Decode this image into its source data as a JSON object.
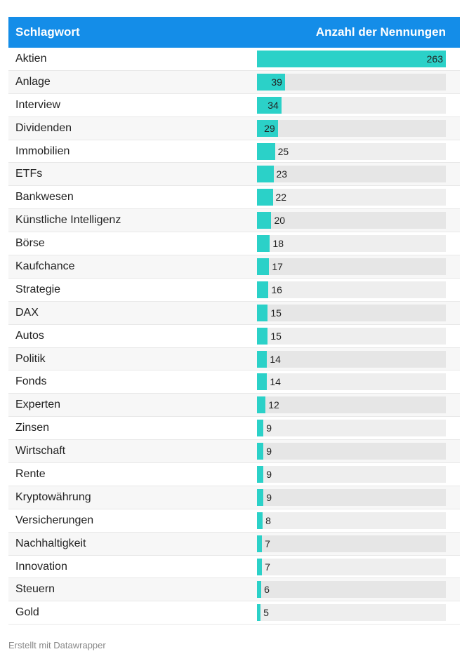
{
  "chart_data": {
    "type": "bar",
    "columns": [
      "Schlagwort",
      "Anzahl der Nennungen"
    ],
    "categories": [
      "Aktien",
      "Anlage",
      "Interview",
      "Dividenden",
      "Immobilien",
      "ETFs",
      "Bankwesen",
      "Künstliche Intelligenz",
      "Börse",
      "Kaufchance",
      "Strategie",
      "DAX",
      "Autos",
      "Politik",
      "Fonds",
      "Experten",
      "Zinsen",
      "Wirtschaft",
      "Rente",
      "Kryptowährung",
      "Versicherungen",
      "Nachhaltigkeit",
      "Innovation",
      "Steuern",
      "Gold"
    ],
    "values": [
      263,
      39,
      34,
      29,
      25,
      23,
      22,
      20,
      18,
      17,
      16,
      15,
      15,
      14,
      14,
      12,
      9,
      9,
      9,
      9,
      8,
      7,
      7,
      6,
      5
    ],
    "xlim": [
      0,
      263
    ],
    "colors": {
      "header": "#148de8",
      "bar": "#2bd1c8"
    }
  },
  "footer": "Erstellt mit Datawrapper"
}
